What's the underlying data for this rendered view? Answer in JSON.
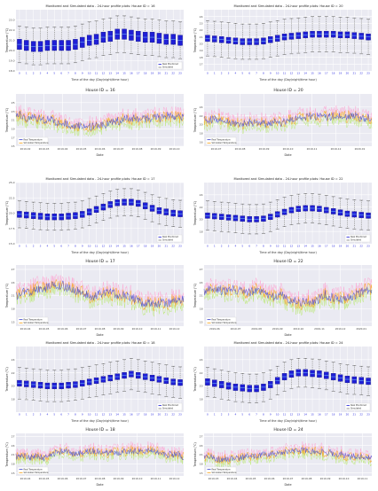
{
  "chart_data": [
    {
      "type": "box",
      "title": "Monitored and Simulated data - 24-hour profile plots: House ID = 16",
      "xlabel": "Time of the day (Day/night/time hour)",
      "ylabel": "Temperature (°C)",
      "categories": [
        "0",
        "1",
        "2",
        "3",
        "4",
        "5",
        "6",
        "7",
        "8",
        "9",
        "10",
        "11",
        "12",
        "13",
        "14",
        "15",
        "16",
        "17",
        "18",
        "19",
        "20",
        "21",
        "22",
        "23"
      ],
      "medians": [
        20.6,
        20.5,
        20.4,
        20.4,
        20.5,
        20.5,
        20.5,
        20.5,
        20.6,
        20.8,
        21.0,
        21.1,
        21.3,
        21.4,
        21.6,
        21.6,
        21.5,
        21.4,
        21.3,
        21.3,
        21.2,
        21.1,
        21.1,
        21.0
      ],
      "box_half_height": 0.5,
      "whisker": 1.8,
      "ylim": [
        18.0,
        24.0
      ],
      "yticks": [
        "18.0",
        "19.0",
        "20.0",
        "21.0",
        "22.0",
        "23.0"
      ],
      "legend": [
        "Real Monitored",
        "Simulated"
      ]
    },
    {
      "type": "box",
      "title": "Monitored and Simulated data - 24-hour profile plots: House ID = 20",
      "xlabel": "Time of the day (Day/night/time hour)",
      "ylabel": "Temperature (°C)",
      "categories": [
        "0",
        "1",
        "2",
        "3",
        "4",
        "5",
        "6",
        "7",
        "8",
        "9",
        "10",
        "11",
        "12",
        "13",
        "14",
        "15",
        "16",
        "17",
        "18",
        "19",
        "20",
        "21",
        "22",
        "23"
      ],
      "medians": [
        20.8,
        20.7,
        20.6,
        20.5,
        20.4,
        20.3,
        20.3,
        20.3,
        20.4,
        20.6,
        20.8,
        21.0,
        21.1,
        21.2,
        21.3,
        21.4,
        21.4,
        21.4,
        21.4,
        21.3,
        21.3,
        21.2,
        21.1,
        21.0
      ],
      "box_half_height": 0.45,
      "whisker": 2.6,
      "ylim": [
        16.0,
        25.0
      ],
      "yticks": [
        "17",
        "18",
        "19",
        "20",
        "21",
        "22",
        "23",
        "24"
      ],
      "legend": []
    },
    {
      "type": "line",
      "title": "House ID = 16",
      "xlabel": "Date",
      "ylabel": "Temperature (°C)",
      "xticks": [
        "2019-02",
        "2019-03",
        "2019-04",
        "2019-05",
        "2019-06",
        "2019-07",
        "2019-08",
        "2019-09",
        "2019-10"
      ],
      "ylim": [
        15,
        27
      ],
      "yticks": [
        "15",
        "17",
        "19",
        "21",
        "23",
        "25"
      ],
      "series": [
        {
          "name": "Real Temperature",
          "color": "#4a4fd0"
        },
        {
          "name": "Simulated Temperature",
          "color": "#f5a623"
        }
      ],
      "legend": [
        "Real Temperature",
        "Simulated Temperature"
      ]
    },
    {
      "type": "line",
      "title": "House ID = 20",
      "xlabel": "Date",
      "ylabel": "Temperature (°C)",
      "xticks": [
        "2019-07",
        "2019-08",
        "2019-09",
        "2019-10",
        "2019-11",
        "2019-12",
        "2020-01"
      ],
      "ylim": [
        15,
        27
      ],
      "yticks": [
        "16",
        "18",
        "20",
        "22",
        "24"
      ],
      "series": [
        {
          "name": "Real Temperature",
          "color": "#4a4fd0"
        },
        {
          "name": "Simulated Temperature",
          "color": "#f5a623"
        }
      ],
      "legend": [
        "Real Temperature",
        "Simulated Temperature"
      ]
    },
    {
      "type": "box",
      "title": "Monitored and Simulated data - 24-hour profile plots: House ID = 17",
      "xlabel": "Time of the day (Day/night/time hour)",
      "ylabel": "Temperature (°C)",
      "categories": [
        "0",
        "1",
        "2",
        "3",
        "4",
        "5",
        "6",
        "7",
        "8",
        "9",
        "10",
        "11",
        "12",
        "13",
        "14",
        "15",
        "16",
        "17",
        "18",
        "19",
        "20",
        "21",
        "22",
        "23"
      ],
      "medians": [
        19.8,
        19.7,
        19.6,
        19.5,
        19.4,
        19.4,
        19.4,
        19.5,
        19.6,
        19.8,
        20.2,
        20.6,
        21.0,
        21.4,
        21.7,
        21.8,
        21.8,
        21.6,
        21.2,
        20.8,
        20.4,
        20.2,
        20.0,
        19.9
      ],
      "box_half_height": 0.5,
      "whisker": 2.2,
      "ylim": [
        15.0,
        25.0
      ],
      "yticks": [
        "15.0",
        "17.5",
        "20.0",
        "22.5",
        "25.0"
      ],
      "legend": [
        "Real Monitored",
        "Simulated"
      ]
    },
    {
      "type": "box",
      "title": "Monitored and Simulated data - 24-hour profile plots: House ID = 22",
      "xlabel": "Time of the day (Day/night/time hour)",
      "ylabel": "Temperature (°C)",
      "categories": [
        "0",
        "1",
        "2",
        "3",
        "4",
        "5",
        "6",
        "7",
        "8",
        "9",
        "10",
        "11",
        "12",
        "13",
        "14",
        "15",
        "16",
        "17",
        "18",
        "19",
        "20",
        "21",
        "22",
        "23"
      ],
      "medians": [
        20.6,
        20.5,
        20.4,
        20.3,
        20.2,
        20.1,
        20.0,
        20.0,
        20.1,
        20.4,
        20.8,
        21.2,
        21.5,
        21.7,
        21.8,
        21.8,
        21.7,
        21.5,
        21.3,
        21.1,
        20.9,
        20.8,
        20.7,
        20.6
      ],
      "box_half_height": 0.45,
      "whisker": 2.4,
      "ylim": [
        16.0,
        26.0
      ],
      "yticks": [
        "18",
        "20",
        "22",
        "24"
      ],
      "legend": [
        "Real Monitored",
        "Simulated"
      ]
    },
    {
      "type": "line",
      "title": "House ID = 17",
      "xlabel": "Date",
      "ylabel": "Temperature (°C)",
      "xticks": [
        "2019-04",
        "2019-05",
        "2019-06",
        "2019-07",
        "2019-08",
        "2019-09",
        "2019-10",
        "2019-11",
        "2019-12"
      ],
      "ylim": [
        14,
        28
      ],
      "yticks": [
        "15",
        "18",
        "21",
        "24",
        "27"
      ],
      "series": [
        {
          "name": "Real Temperature",
          "color": "#4a4fd0"
        },
        {
          "name": "Simulated Temperature",
          "color": "#f5a623"
        }
      ],
      "legend": [
        "Real Temperature",
        "Simulated Temperature"
      ]
    },
    {
      "type": "line",
      "title": "House ID = 22",
      "xlabel": "Date",
      "ylabel": "Temperature (°C)",
      "xticks": [
        "2019-06",
        "2019-07",
        "2019-08",
        "2019-09",
        "2019-10",
        "2019-11",
        "2019-12",
        "2020-01"
      ],
      "ylim": [
        14,
        28
      ],
      "yticks": [
        "15",
        "18",
        "21",
        "24",
        "27"
      ],
      "series": [
        {
          "name": "Real Temperature",
          "color": "#4a4fd0"
        },
        {
          "name": "Simulated Temperature",
          "color": "#f5a623"
        }
      ],
      "legend": [
        "Real Temperature",
        "Simulated Temperature"
      ]
    },
    {
      "type": "box",
      "title": "Monitored and Simulated data - 24-hour profile plots: House ID = 18",
      "xlabel": "Time of the day (Day/night/time hour)",
      "ylabel": "Temperature (°C)",
      "categories": [
        "0",
        "1",
        "2",
        "3",
        "4",
        "5",
        "6",
        "7",
        "8",
        "9",
        "10",
        "11",
        "12",
        "13",
        "14",
        "15",
        "16",
        "17",
        "18",
        "19",
        "20",
        "21",
        "22",
        "23"
      ],
      "medians": [
        20.4,
        20.3,
        20.2,
        20.1,
        20.0,
        20.0,
        20.0,
        20.1,
        20.2,
        20.4,
        20.6,
        20.8,
        21.0,
        21.2,
        21.4,
        21.6,
        21.8,
        21.6,
        21.4,
        21.2,
        21.0,
        20.8,
        20.6,
        20.5
      ],
      "box_half_height": 0.45,
      "whisker": 2.4,
      "ylim": [
        16.0,
        26.0
      ],
      "yticks": [
        "18",
        "20",
        "22",
        "24"
      ],
      "legend": [
        "Real Monitored",
        "Simulated"
      ]
    },
    {
      "type": "box",
      "title": "Monitored and Simulated data - 24-hour profile plots: House ID = 24",
      "xlabel": "Time of the day (Day/night/time hour)",
      "ylabel": "Temperature (°C)",
      "categories": [
        "0",
        "1",
        "2",
        "3",
        "4",
        "5",
        "6",
        "7",
        "8",
        "9",
        "10",
        "11",
        "12",
        "13",
        "14",
        "15",
        "16",
        "17",
        "18",
        "19",
        "20",
        "21",
        "22",
        "23"
      ],
      "medians": [
        20.6,
        20.4,
        20.2,
        20.0,
        19.8,
        19.7,
        19.6,
        19.6,
        19.8,
        20.2,
        20.8,
        21.4,
        21.8,
        22.0,
        22.0,
        21.9,
        21.8,
        21.6,
        21.4,
        21.2,
        21.0,
        20.9,
        20.8,
        20.7
      ],
      "box_half_height": 0.5,
      "whisker": 2.2,
      "ylim": [
        16.0,
        26.0
      ],
      "yticks": [
        "18",
        "20",
        "22",
        "24"
      ],
      "legend": [
        "Real Monitored",
        "Simulated"
      ]
    },
    {
      "type": "line",
      "title": "House ID = 18",
      "xlabel": "Date",
      "ylabel": "Temperature (°C)",
      "xticks": [
        "2019-04",
        "2019-05",
        "2019-06",
        "2019-07",
        "2019-08",
        "2019-09",
        "2019-10",
        "2019-11",
        "2019-12"
      ],
      "ylim": [
        14,
        28
      ],
      "yticks": [
        "15",
        "18",
        "21",
        "24",
        "27"
      ],
      "series": [
        {
          "name": "Real Temperature",
          "color": "#4a4fd0"
        },
        {
          "name": "Simulated Temperature",
          "color": "#f5a623"
        }
      ],
      "legend": [
        "Real Temperature",
        "Simulated Temperature"
      ]
    },
    {
      "type": "line",
      "title": "House ID = 24",
      "xlabel": "Date",
      "ylabel": "Temperature (°C)",
      "xticks": [
        "2019-03",
        "2019-04",
        "2019-05",
        "2019-06",
        "2019-07",
        "2019-08",
        "2019-09",
        "2019-10",
        "2019-11"
      ],
      "ylim": [
        14,
        28
      ],
      "yticks": [
        "15",
        "18",
        "21",
        "24",
        "27"
      ],
      "series": [
        {
          "name": "Real Temperature",
          "color": "#4a4fd0"
        },
        {
          "name": "Simulated Temperature",
          "color": "#f5a623"
        }
      ],
      "legend": [
        "Real Temperature",
        "Simulated Temperature"
      ]
    }
  ]
}
